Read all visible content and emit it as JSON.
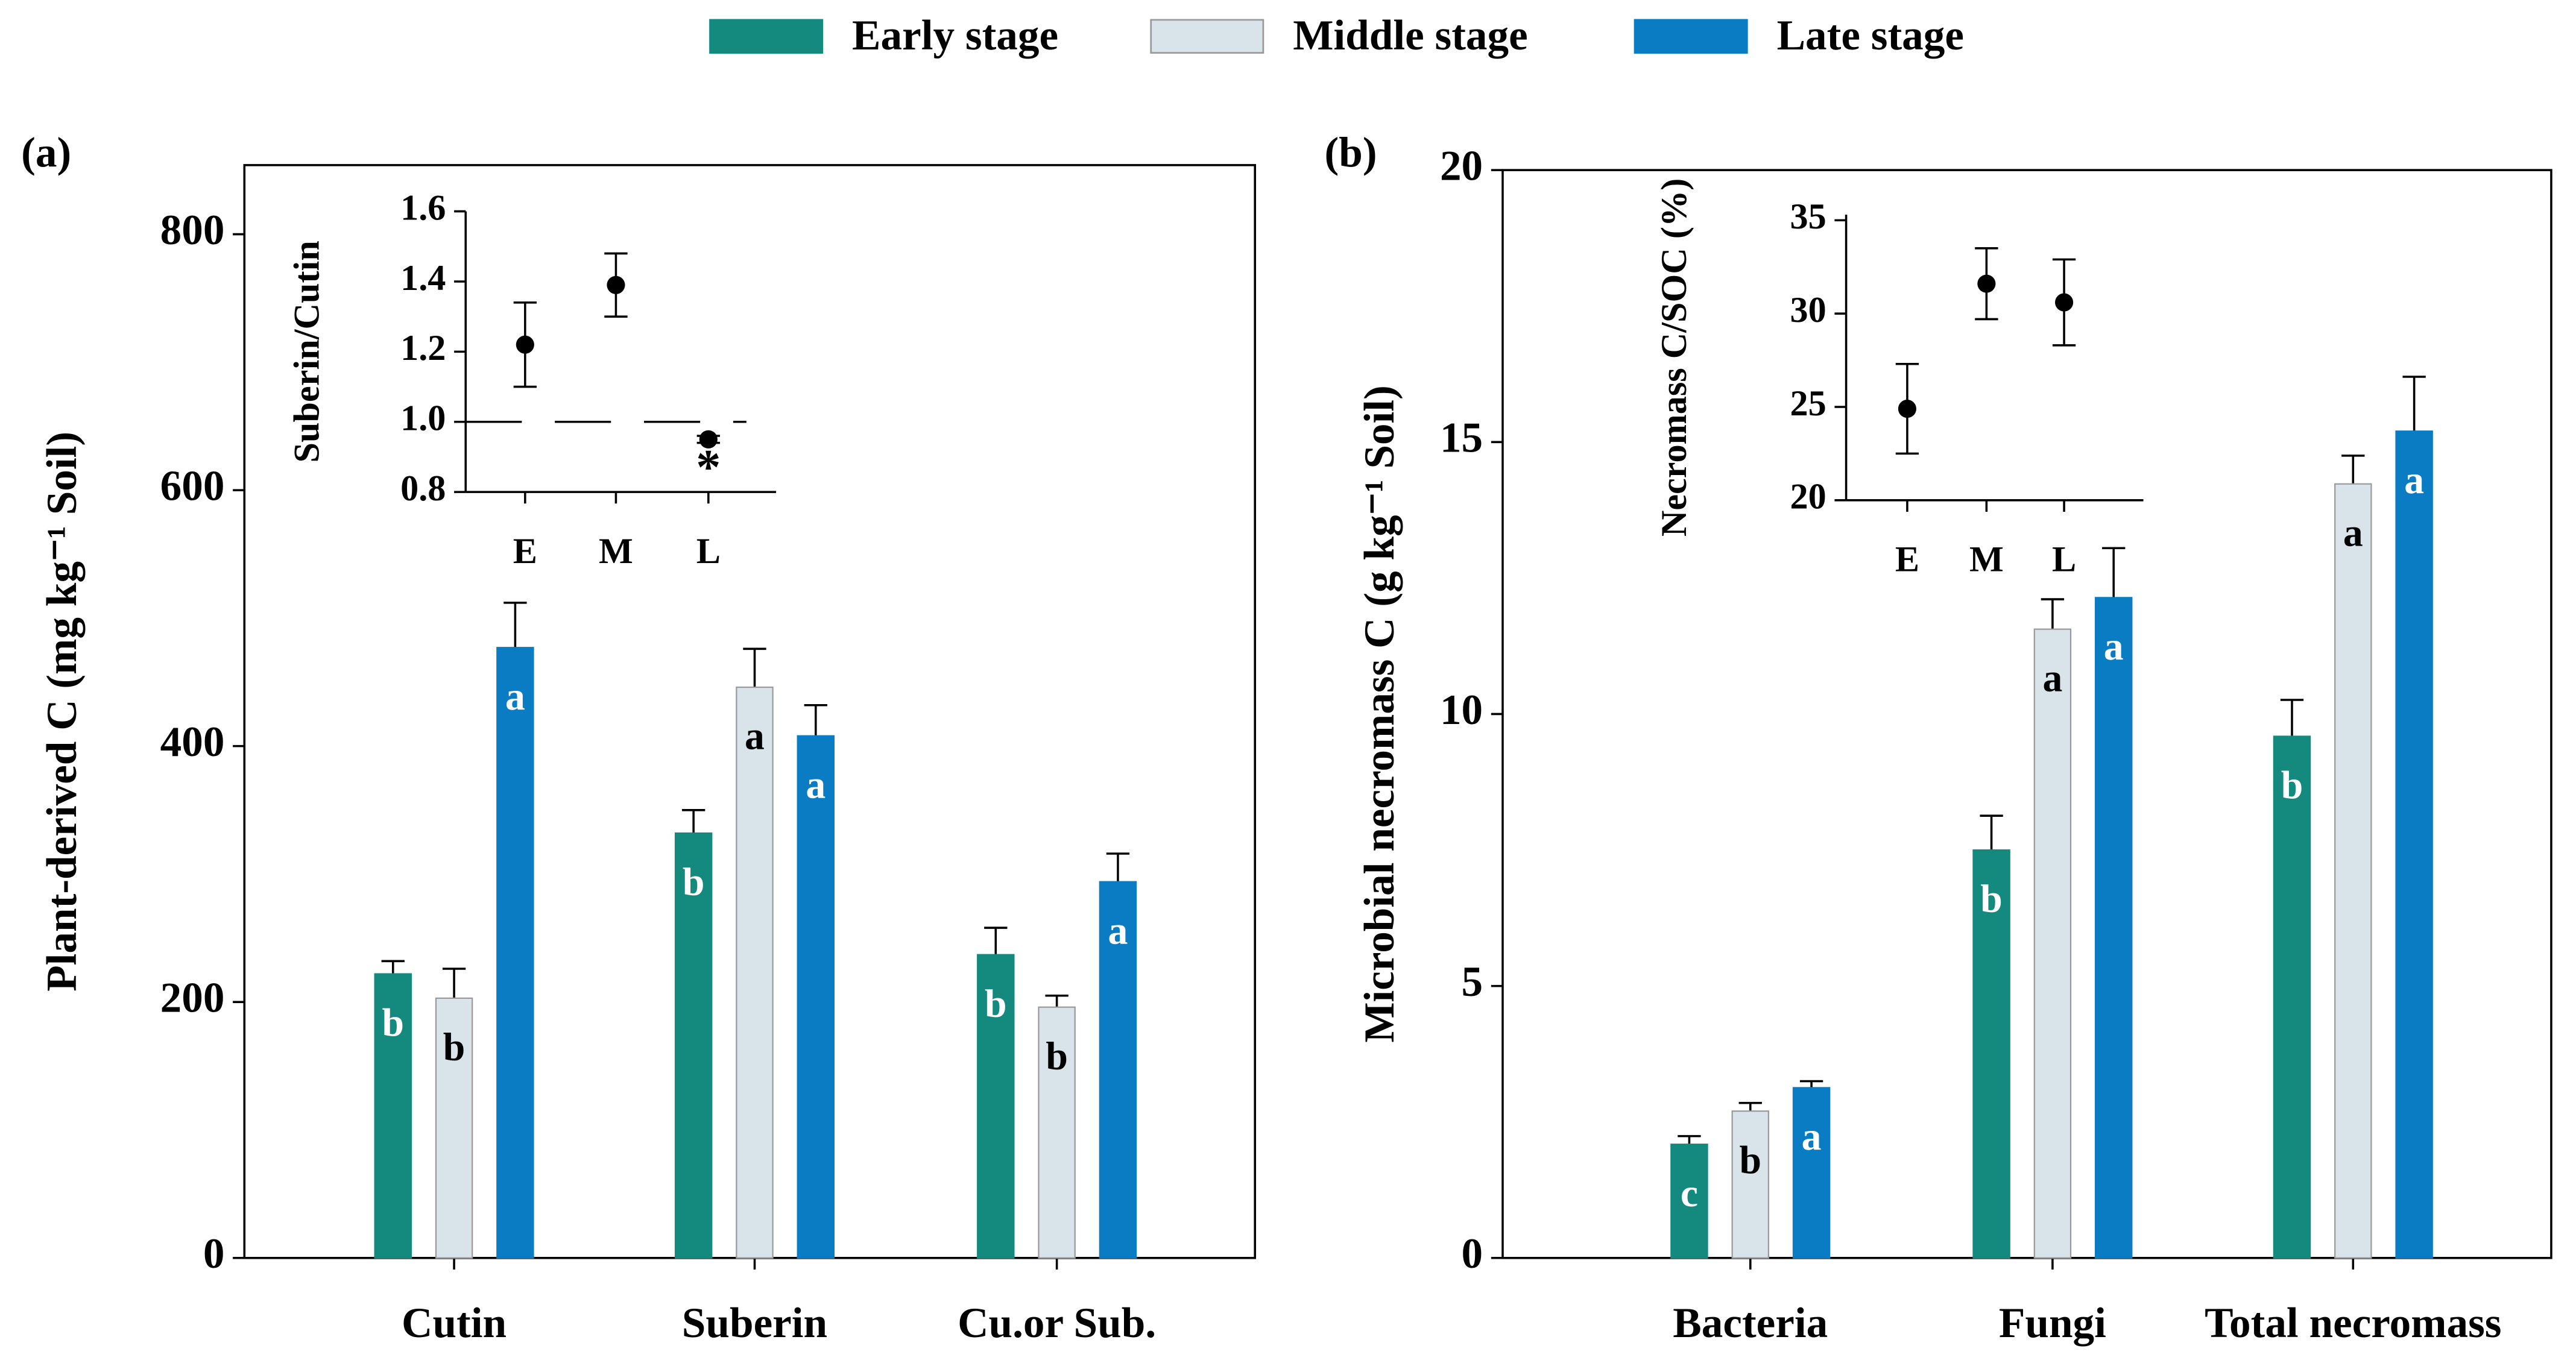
{
  "chart_data": [
    {
      "type": "bar",
      "panel_label": "(a)",
      "ylabel": "Plant-derived C (mg kg⁻¹ Soil)",
      "categories": [
        "Cutin",
        "Suberin",
        "Cu.or Sub."
      ],
      "ylim": [
        0,
        854
      ],
      "yticks": [
        0,
        200,
        400,
        600,
        800
      ],
      "series": [
        {
          "name": "Early stage",
          "color": "#148a7e",
          "values": [
            222,
            332,
            237
          ],
          "errors": [
            10,
            18,
            21
          ],
          "letters": [
            "b",
            "b",
            "b"
          ]
        },
        {
          "name": "Middle stage",
          "color": "#d8e3ea",
          "values": [
            203,
            446,
            196
          ],
          "errors": [
            23,
            30,
            9
          ],
          "letters": [
            "b",
            "a",
            "b"
          ]
        },
        {
          "name": "Late stage",
          "color": "#0a7cc4",
          "values": [
            477,
            408,
            294
          ],
          "errors": [
            35,
            24,
            22
          ],
          "letters": [
            "a",
            "a",
            "a"
          ]
        }
      ]
    },
    {
      "type": "errorpoint",
      "ylabel": "Suberin/Cutin",
      "categories": [
        "E",
        "M",
        "L"
      ],
      "values": [
        1.22,
        1.39,
        0.95
      ],
      "errors": [
        0.12,
        0.09,
        0.01
      ],
      "reference": 1,
      "annotations": [
        {
          "category": 2,
          "text": "*"
        }
      ],
      "ylim": [
        0.8,
        1.6
      ],
      "yticks": [
        0.8,
        {
          "value": 1,
          "label": "1.0"
        },
        1.2,
        1.4,
        1.6
      ]
    },
    {
      "type": "bar",
      "panel_label": "(b)",
      "ylabel": "Microbial necromass C (g kg⁻¹ Soil)",
      "categories": [
        "Bacteria",
        "Fungi",
        "Total necromass"
      ],
      "ylim": [
        0,
        20
      ],
      "yticks": [
        0,
        5,
        10,
        15,
        20
      ],
      "series": [
        {
          "color": "#148a7e",
          "values": [
            2.09,
            7.5,
            9.59
          ],
          "errors": [
            0.15,
            0.63,
            0.67
          ],
          "letters": [
            "c",
            "b",
            "b"
          ]
        },
        {
          "color": "#d8e3ea",
          "values": [
            2.7,
            11.56,
            14.23
          ],
          "errors": [
            0.15,
            0.55,
            0.52
          ],
          "letters": [
            "b",
            "a",
            "a"
          ]
        },
        {
          "color": "#0a7cc4",
          "values": [
            3.13,
            12.14,
            15.2
          ],
          "errors": [
            0.12,
            0.91,
            1.0
          ],
          "letters": [
            "a",
            "a",
            "a"
          ]
        }
      ]
    },
    {
      "type": "errorpoint",
      "ylabel": "Necromass C/SOC (%)",
      "categories": [
        "E",
        "M",
        "L"
      ],
      "values": [
        24.9,
        31.6,
        30.6
      ],
      "errors": [
        2.4,
        1.9,
        2.3
      ],
      "ylim": [
        20,
        35.3
      ],
      "yticks": [
        20,
        25,
        30,
        35
      ]
    }
  ]
}
